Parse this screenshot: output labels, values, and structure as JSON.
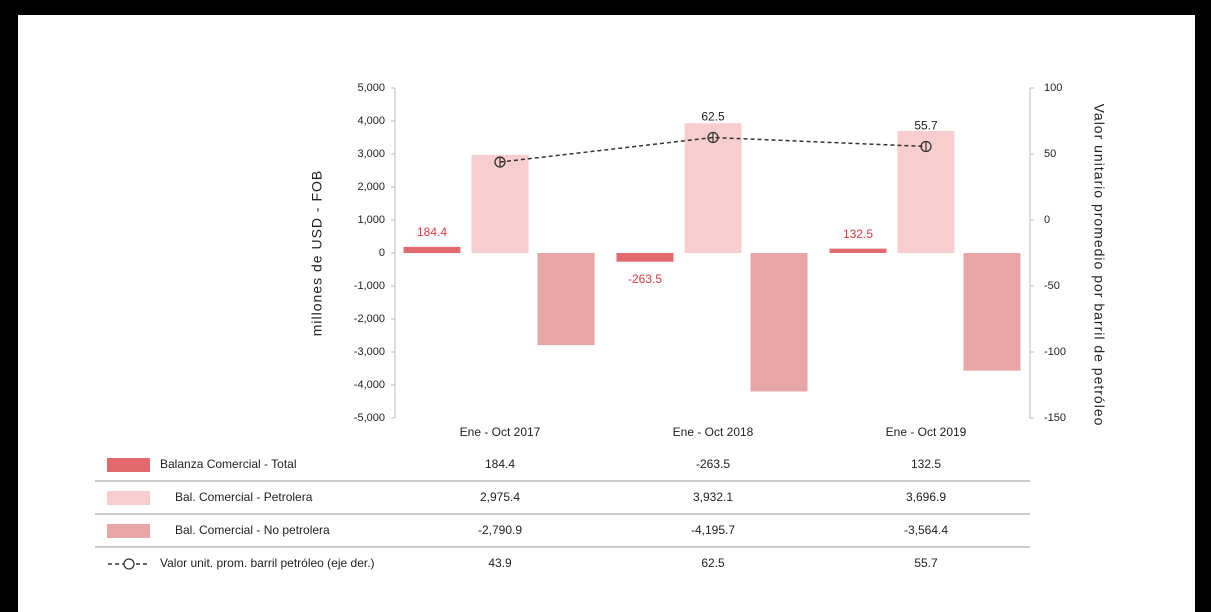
{
  "chart_data": {
    "type": "bar",
    "categories": [
      "Ene - Oct  2017",
      "Ene - Oct  2018",
      "Ene - Oct  2019"
    ],
    "ylabel": "millones de USD - FOB",
    "y2label": "Valor unitario promedio por barril de petróleo",
    "ylim": [
      -5000,
      5000
    ],
    "yticks": [
      {
        "value": 5000,
        "label": "5,000"
      },
      {
        "value": 4000,
        "label": "4,000"
      },
      {
        "value": 3000,
        "label": "3,000"
      },
      {
        "value": 2000,
        "label": "2,000"
      },
      {
        "value": 1000,
        "label": "1,000"
      },
      0,
      {
        "value": -1000,
        "label": "-1,000"
      },
      {
        "value": -2000,
        "label": "-2,000"
      },
      {
        "value": -3000,
        "label": "-3,000"
      },
      {
        "value": -4000,
        "label": "-4,000"
      },
      {
        "value": -5000,
        "label": "-5,000"
      }
    ],
    "y2lim": [
      -150,
      100
    ],
    "y2ticks": [
      100,
      50,
      0,
      -50,
      -100,
      -150
    ],
    "series": [
      {
        "name": "Balanza Comercial - Total",
        "type": "bar",
        "color": "#e26a6e",
        "values": [
          184.4,
          -263.5,
          132.5
        ]
      },
      {
        "name": "Bal. Comercial - Petrolera",
        "type": "bar",
        "color": "#f7cdcd",
        "values": [
          2975.4,
          3932.1,
          3696.9
        ],
        "value_labels": [
          "2,975.4",
          "3,932.1",
          "3,696.9"
        ]
      },
      {
        "name": "Bal. Comercial - No petrolera",
        "type": "bar",
        "color": "#e8a5a5",
        "values": [
          -2790.9,
          -4195.7,
          -3564.4
        ],
        "value_labels": [
          "-2,790.9",
          "-4,195.7",
          "-3,564.4"
        ]
      },
      {
        "name": "Valor unit. prom. barril petróleo (eje der.)",
        "type": "line",
        "axis": "y2",
        "color": "#333333",
        "values": [
          43.9,
          62.5,
          55.7
        ]
      }
    ]
  }
}
